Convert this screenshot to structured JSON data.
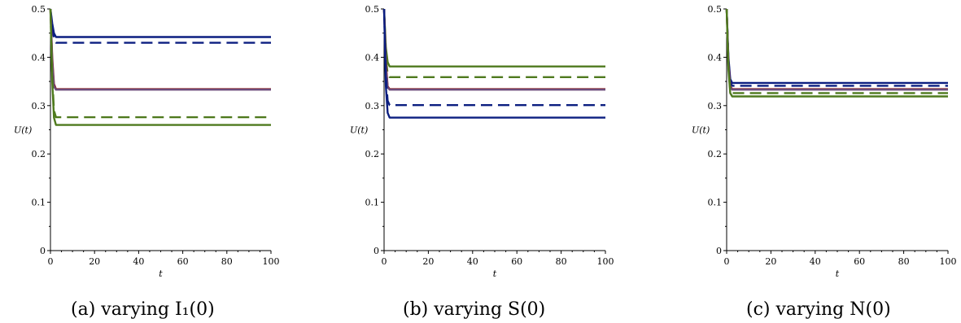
{
  "chart_data": [
    {
      "type": "line",
      "caption": "(a) varying I₁(0)",
      "xlabel": "t",
      "ylabel": "U(t)",
      "xlim": [
        0,
        100
      ],
      "ylim": [
        0,
        0.5
      ],
      "xticks": [
        0,
        20,
        40,
        60,
        80,
        100
      ],
      "yticks": [
        0,
        0.1,
        0.2,
        0.3,
        0.4,
        0.5
      ],
      "series": [
        {
          "color": "#0b1e80",
          "dash": "solid",
          "x": [
            0,
            0.8,
            1.6,
            2.5,
            100
          ],
          "y": [
            0.5,
            0.47,
            0.45,
            0.442,
            0.442
          ]
        },
        {
          "color": "#0b1e80",
          "dash": "dashed",
          "x": [
            0,
            0.8,
            1.6,
            2.5,
            100
          ],
          "y": [
            0.5,
            0.46,
            0.44,
            0.43,
            0.43
          ]
        },
        {
          "color": "#8b1a1a",
          "dash": "solid",
          "x": [
            0,
            0.8,
            1.6,
            2.5,
            100
          ],
          "y": [
            0.5,
            0.4,
            0.345,
            0.334,
            0.334
          ]
        },
        {
          "color": "#6b4a7a",
          "dash": "solid",
          "x": [
            0,
            0.8,
            1.6,
            2.5,
            100
          ],
          "y": [
            0.5,
            0.39,
            0.34,
            0.333,
            0.333
          ]
        },
        {
          "color": "#4f7a1e",
          "dash": "dashed",
          "x": [
            0,
            0.8,
            1.6,
            2.5,
            100
          ],
          "y": [
            0.5,
            0.36,
            0.29,
            0.276,
            0.276
          ]
        },
        {
          "color": "#4f7a1e",
          "dash": "solid",
          "x": [
            0,
            0.8,
            1.6,
            2.5,
            100
          ],
          "y": [
            0.5,
            0.35,
            0.275,
            0.26,
            0.26
          ]
        }
      ]
    },
    {
      "type": "line",
      "caption": "(b) varying S(0)",
      "xlabel": "t",
      "ylabel": "U(t)",
      "xlim": [
        0,
        100
      ],
      "ylim": [
        0,
        0.5
      ],
      "xticks": [
        0,
        20,
        40,
        60,
        80,
        100
      ],
      "yticks": [
        0,
        0.1,
        0.2,
        0.3,
        0.4,
        0.5
      ],
      "series": [
        {
          "color": "#4f7a1e",
          "dash": "solid",
          "x": [
            0,
            0.8,
            1.6,
            2.5,
            100
          ],
          "y": [
            0.5,
            0.42,
            0.39,
            0.381,
            0.381
          ]
        },
        {
          "color": "#4f7a1e",
          "dash": "dashed",
          "x": [
            0,
            0.8,
            1.6,
            2.5,
            100
          ],
          "y": [
            0.5,
            0.4,
            0.365,
            0.359,
            0.359
          ]
        },
        {
          "color": "#8b1a1a",
          "dash": "solid",
          "x": [
            0,
            0.8,
            1.6,
            2.5,
            100
          ],
          "y": [
            0.5,
            0.39,
            0.34,
            0.334,
            0.334
          ]
        },
        {
          "color": "#6b4a7a",
          "dash": "solid",
          "x": [
            0,
            0.8,
            1.6,
            2.5,
            100
          ],
          "y": [
            0.5,
            0.38,
            0.338,
            0.333,
            0.333
          ]
        },
        {
          "color": "#0b1e80",
          "dash": "dashed",
          "x": [
            0,
            0.8,
            1.6,
            2.5,
            100
          ],
          "y": [
            0.5,
            0.36,
            0.31,
            0.301,
            0.301
          ]
        },
        {
          "color": "#0b1e80",
          "dash": "solid",
          "x": [
            0,
            0.8,
            1.6,
            2.5,
            100
          ],
          "y": [
            0.5,
            0.34,
            0.285,
            0.275,
            0.275
          ]
        }
      ]
    },
    {
      "type": "line",
      "caption": "(c) varying N(0)",
      "xlabel": "t",
      "ylabel": "U(t)",
      "xlim": [
        0,
        100
      ],
      "ylim": [
        0,
        0.5
      ],
      "xticks": [
        0,
        20,
        40,
        60,
        80,
        100
      ],
      "yticks": [
        0,
        0.1,
        0.2,
        0.3,
        0.4,
        0.5
      ],
      "series": [
        {
          "color": "#0b1e80",
          "dash": "solid",
          "x": [
            0,
            0.8,
            1.6,
            2.5,
            100
          ],
          "y": [
            0.5,
            0.4,
            0.355,
            0.347,
            0.347
          ]
        },
        {
          "color": "#0b1e80",
          "dash": "dashed",
          "x": [
            0,
            0.8,
            1.6,
            2.5,
            100
          ],
          "y": [
            0.5,
            0.395,
            0.348,
            0.341,
            0.341
          ]
        },
        {
          "color": "#8b1a1a",
          "dash": "solid",
          "x": [
            0,
            0.8,
            1.6,
            2.5,
            100
          ],
          "y": [
            0.5,
            0.39,
            0.34,
            0.334,
            0.334
          ]
        },
        {
          "color": "#6b4a7a",
          "dash": "solid",
          "x": [
            0,
            0.8,
            1.6,
            2.5,
            100
          ],
          "y": [
            0.5,
            0.385,
            0.338,
            0.333,
            0.333
          ]
        },
        {
          "color": "#4f7a1e",
          "dash": "dashed",
          "x": [
            0,
            0.8,
            1.6,
            2.5,
            100
          ],
          "y": [
            0.5,
            0.38,
            0.332,
            0.326,
            0.326
          ]
        },
        {
          "color": "#4f7a1e",
          "dash": "solid",
          "x": [
            0,
            0.8,
            1.6,
            2.5,
            100
          ],
          "y": [
            0.5,
            0.375,
            0.326,
            0.319,
            0.319
          ]
        }
      ]
    }
  ]
}
